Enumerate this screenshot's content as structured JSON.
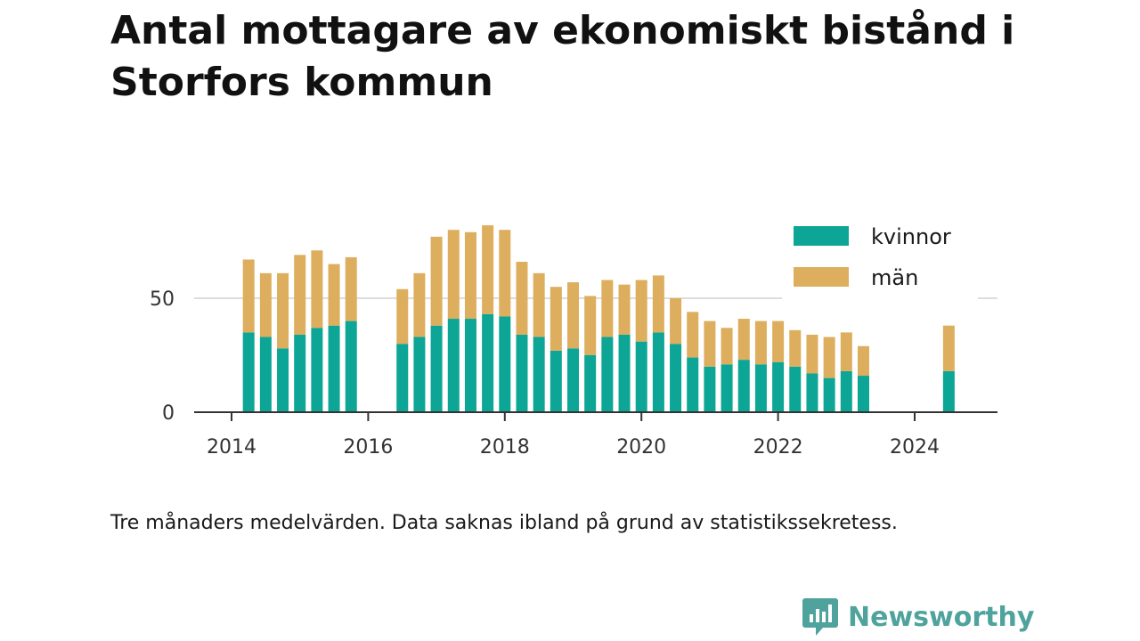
{
  "title": "Antal mottagare av ekonomiskt bistånd i Storfors kommun",
  "caption": "Tre månaders medelvärden. Data saknas ibland på grund av statistikssekretess.",
  "brand": {
    "name": "Newsworthy",
    "icon": "newsworthy-logo-icon",
    "color": "#4fa39c"
  },
  "chart_data": {
    "type": "bar",
    "stacked": true,
    "title": "Antal mottagare av ekonomiskt bistånd i Storfors kommun",
    "xlabel": "",
    "ylabel": "",
    "xlim": [
      2013.5,
      2025.4
    ],
    "ylim": [
      0,
      100
    ],
    "y_ticks": [
      0,
      50
    ],
    "y_tick_labels": [
      "0",
      "50"
    ],
    "x_ticks": [
      2014,
      2016,
      2018,
      2020,
      2022,
      2024
    ],
    "x_tick_labels": [
      "2014",
      "2016",
      "2018",
      "2020",
      "2022",
      "2024"
    ],
    "grid": "horizontal",
    "legend_position": "top-right",
    "x": [
      2014.25,
      2014.5,
      2014.75,
      2015.0,
      2015.25,
      2015.5,
      2015.75,
      2016.5,
      2016.75,
      2017.0,
      2017.25,
      2017.5,
      2017.75,
      2018.0,
      2018.25,
      2018.5,
      2018.75,
      2019.0,
      2019.25,
      2019.5,
      2019.75,
      2020.0,
      2020.25,
      2020.5,
      2020.75,
      2021.0,
      2021.25,
      2021.5,
      2021.75,
      2022.0,
      2022.25,
      2022.5,
      2022.75,
      2023.0,
      2023.25,
      2024.5
    ],
    "series": [
      {
        "name": "kvinnor",
        "color": "#0ca596",
        "values": [
          35,
          33,
          28,
          34,
          37,
          38,
          40,
          30,
          33,
          38,
          41,
          41,
          43,
          42,
          34,
          33,
          27,
          28,
          25,
          33,
          34,
          31,
          35,
          30,
          24,
          20,
          21,
          23,
          21,
          22,
          20,
          17,
          15,
          18,
          16,
          18
        ]
      },
      {
        "name": "män",
        "color": "#ddae5e",
        "values": [
          32,
          28,
          33,
          35,
          34,
          27,
          28,
          24,
          28,
          39,
          39,
          38,
          39,
          38,
          32,
          28,
          28,
          29,
          26,
          25,
          22,
          27,
          25,
          20,
          20,
          20,
          16,
          18,
          19,
          18,
          16,
          17,
          18,
          17,
          13,
          20
        ]
      }
    ]
  }
}
